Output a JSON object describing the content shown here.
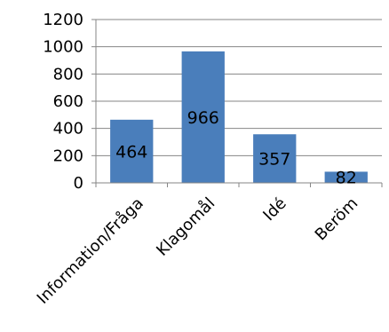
{
  "chart_data": {
    "type": "bar",
    "categories": [
      "Information/Fråga",
      "Klagomål",
      "Idé",
      "Beröm"
    ],
    "values": [
      464,
      966,
      357,
      82
    ],
    "data_labels": [
      "464",
      "966",
      "357",
      "82"
    ],
    "y_ticks": [
      "0",
      "200",
      "400",
      "600",
      "800",
      "1000",
      "1200"
    ],
    "ylim": [
      0,
      1200
    ],
    "title": "",
    "xlabel": "",
    "ylabel": "",
    "grid": true,
    "legend": "none",
    "colors": {
      "bar": "#4a7ebb",
      "grid": "#868686",
      "axis": "#868686",
      "text": "#000000"
    }
  }
}
